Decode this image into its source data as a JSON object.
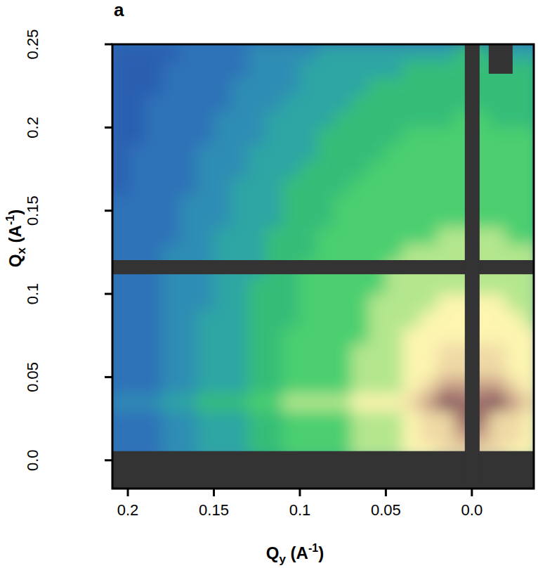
{
  "chart_data": {
    "type": "heatmap",
    "title": "a",
    "xlabel": "Qy (A-1)",
    "ylabel": "Qx (A-1)",
    "xlim": [
      0.209,
      -0.036
    ],
    "ylim": [
      -0.017,
      0.25
    ],
    "xticks": [
      0.2,
      0.15,
      0.1,
      0.05,
      {
        "value": 0,
        "label": "0.0"
      }
    ],
    "yticks": [
      {
        "value": 0,
        "label": "0.0"
      },
      0.05,
      0.1,
      0.15,
      0.2,
      0.25
    ],
    "x": [
      0.205,
      0.195,
      0.185,
      0.175,
      0.165,
      0.155,
      0.145,
      0.135,
      0.125,
      0.115,
      0.105,
      0.095,
      0.085,
      0.075,
      0.065,
      0.055,
      0.045,
      0.035,
      0.025,
      0.015,
      0.005,
      -0.005,
      -0.015,
      -0.025,
      -0.035
    ],
    "y": [
      0.005,
      0.015,
      0.025,
      0.035,
      0.045,
      0.055,
      0.065,
      0.075,
      0.085,
      0.095,
      0.105,
      0.115,
      0.125,
      0.135,
      0.145,
      0.155,
      0.165,
      0.175,
      0.185,
      0.195,
      0.205,
      0.215,
      0.225,
      0.235,
      0.245
    ],
    "zlim": [
      0,
      11
    ],
    "z": [
      [
        1,
        1,
        1,
        2,
        2,
        3,
        3,
        3,
        4,
        4,
        5,
        5,
        5,
        5,
        6,
        6,
        6,
        7,
        7,
        8,
        8,
        8,
        8,
        7,
        7
      ],
      [
        1,
        1,
        1,
        2,
        2,
        3,
        3,
        3,
        4,
        4,
        5,
        5,
        5,
        5,
        6,
        6,
        6,
        7,
        8,
        8,
        9,
        9,
        8,
        8,
        7
      ],
      [
        1,
        1,
        1,
        2,
        2,
        3,
        3,
        3,
        4,
        4,
        5,
        5,
        5,
        5,
        6,
        6,
        6,
        7,
        8,
        8,
        10,
        10,
        8,
        8,
        7
      ],
      [
        2,
        2,
        2,
        3,
        3,
        4,
        4,
        4,
        5,
        5,
        6,
        6,
        6,
        6,
        7,
        7,
        7,
        8,
        9,
        11,
        10,
        10,
        11,
        9,
        8
      ],
      [
        1,
        1,
        1,
        2,
        2,
        3,
        3,
        3,
        4,
        4,
        5,
        5,
        5,
        5,
        6,
        6,
        6,
        7,
        8,
        9,
        9,
        9,
        9,
        8,
        7
      ],
      [
        1,
        1,
        1,
        2,
        2,
        3,
        3,
        3,
        4,
        4,
        5,
        5,
        5,
        5,
        6,
        6,
        6,
        7,
        7,
        8,
        8,
        8,
        8,
        7,
        7
      ],
      [
        1,
        1,
        1,
        2,
        2,
        3,
        3,
        3,
        4,
        4,
        5,
        5,
        5,
        5,
        6,
        6,
        6,
        7,
        7,
        8,
        8,
        8,
        8,
        7,
        7
      ],
      [
        1,
        1,
        1,
        2,
        2,
        3,
        3,
        3,
        4,
        4,
        5,
        5,
        5,
        5,
        5,
        6,
        6,
        7,
        7,
        7,
        7,
        7,
        7,
        7,
        7
      ],
      [
        1,
        1,
        1,
        2,
        2,
        3,
        3,
        3,
        4,
        4,
        4,
        5,
        5,
        5,
        5,
        6,
        6,
        6,
        7,
        7,
        7,
        7,
        7,
        7,
        6
      ],
      [
        1,
        1,
        1,
        2,
        2,
        2,
        3,
        3,
        4,
        4,
        4,
        5,
        5,
        5,
        5,
        6,
        6,
        6,
        6,
        7,
        7,
        7,
        7,
        6,
        6
      ],
      [
        1,
        1,
        1,
        2,
        2,
        2,
        3,
        3,
        4,
        4,
        4,
        5,
        5,
        5,
        5,
        5,
        6,
        6,
        6,
        6,
        6,
        6,
        6,
        6,
        6
      ],
      [
        1,
        1,
        1,
        2,
        2,
        2,
        3,
        3,
        3,
        4,
        4,
        5,
        5,
        5,
        5,
        5,
        6,
        6,
        6,
        6,
        6,
        6,
        6,
        6,
        6
      ],
      [
        1,
        1,
        1,
        2,
        2,
        2,
        3,
        3,
        3,
        4,
        4,
        4,
        5,
        5,
        5,
        5,
        5,
        6,
        6,
        6,
        6,
        6,
        6,
        6,
        6
      ],
      [
        1,
        1,
        1,
        1,
        2,
        2,
        3,
        3,
        3,
        4,
        4,
        4,
        5,
        5,
        5,
        5,
        5,
        5,
        5,
        6,
        6,
        6,
        6,
        5,
        5
      ],
      [
        1,
        1,
        1,
        1,
        2,
        2,
        2,
        3,
        3,
        3,
        4,
        4,
        4,
        5,
        5,
        5,
        5,
        5,
        5,
        5,
        5,
        5,
        5,
        5,
        5
      ],
      [
        1,
        1,
        1,
        1,
        2,
        2,
        2,
        3,
        3,
        3,
        4,
        4,
        4,
        5,
        5,
        5,
        5,
        5,
        5,
        5,
        5,
        5,
        5,
        5,
        5
      ],
      [
        0,
        1,
        1,
        1,
        1,
        2,
        2,
        3,
        3,
        3,
        4,
        4,
        4,
        4,
        5,
        5,
        5,
        5,
        5,
        5,
        5,
        5,
        5,
        5,
        5
      ],
      [
        0,
        1,
        1,
        1,
        1,
        2,
        2,
        2,
        3,
        3,
        3,
        4,
        4,
        4,
        4,
        5,
        5,
        5,
        5,
        5,
        5,
        5,
        5,
        5,
        5
      ],
      [
        0,
        1,
        1,
        1,
        1,
        2,
        2,
        2,
        3,
        3,
        3,
        3,
        4,
        4,
        4,
        4,
        5,
        5,
        5,
        5,
        5,
        5,
        5,
        5,
        5
      ],
      [
        0,
        0,
        1,
        1,
        1,
        1,
        2,
        2,
        2,
        3,
        3,
        3,
        4,
        4,
        4,
        4,
        4,
        5,
        5,
        5,
        5,
        5,
        5,
        5,
        5
      ],
      [
        0,
        0,
        1,
        1,
        1,
        1,
        2,
        2,
        2,
        3,
        3,
        3,
        3,
        4,
        4,
        4,
        4,
        4,
        4,
        4,
        5,
        5,
        4,
        4,
        4
      ],
      [
        0,
        0,
        1,
        1,
        1,
        1,
        1,
        2,
        2,
        2,
        3,
        3,
        3,
        3,
        4,
        4,
        4,
        4,
        4,
        4,
        4,
        4,
        4,
        4,
        4
      ],
      [
        0,
        0,
        0,
        1,
        1,
        1,
        1,
        2,
        2,
        2,
        2,
        3,
        3,
        3,
        3,
        4,
        4,
        4,
        4,
        4,
        4,
        4,
        4,
        4,
        4
      ],
      [
        0,
        0,
        0,
        1,
        1,
        1,
        1,
        1,
        2,
        2,
        2,
        3,
        3,
        3,
        3,
        3,
        3,
        4,
        4,
        4,
        4,
        4,
        4,
        4,
        4
      ],
      [
        0,
        0,
        0,
        0,
        1,
        1,
        1,
        1,
        2,
        2,
        2,
        2,
        3,
        3,
        3,
        3,
        3,
        3,
        3,
        3,
        4,
        4,
        3,
        3,
        3
      ]
    ],
    "masks": [
      {
        "x": [
          0.22,
          -0.05
        ],
        "y": [
          -0.03,
          0.0055
        ]
      },
      {
        "x": [
          0.22,
          -0.05
        ],
        "y": [
          0.1118,
          0.1203
        ]
      },
      {
        "x": [
          0.0041,
          -0.0045
        ],
        "y": [
          -0.03,
          0.26
        ]
      },
      {
        "x": [
          -0.0098,
          -0.0237
        ],
        "y": [
          0.2323,
          0.26
        ]
      }
    ]
  }
}
